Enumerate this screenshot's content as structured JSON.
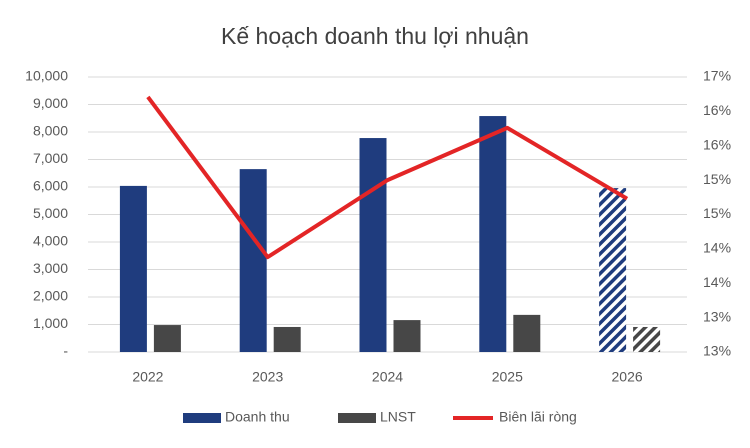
{
  "chart_data": {
    "type": "bar_line",
    "title": "Kế hoạch doanh thu lợi nhuận",
    "categories": [
      "2022",
      "2023",
      "2024",
      "2025",
      "2026"
    ],
    "series": [
      {
        "name": "Doanh thu",
        "color": "#1f3c7e",
        "type": "bar",
        "values": [
          6040,
          6650,
          7780,
          8580,
          5960
        ]
      },
      {
        "name": "LNST",
        "color": "#474747",
        "type": "bar",
        "values": [
          980,
          910,
          1160,
          1350,
          910
        ]
      },
      {
        "name": "Biên lãi ròng",
        "color": "#e32526",
        "type": "line",
        "axis": "y2",
        "values": [
          16.21,
          13.88,
          15.0,
          15.76,
          14.73
        ]
      }
    ],
    "hatched": [
      false,
      false,
      false,
      false,
      true
    ],
    "ylim": [
      0,
      10000
    ],
    "yticks": [
      {
        "value": 0,
        "label": "-"
      },
      {
        "value": 1000,
        "label": "1,000"
      },
      {
        "value": 2000,
        "label": "2,000"
      },
      {
        "value": 3000,
        "label": "3,000"
      },
      {
        "value": 4000,
        "label": "4,000"
      },
      {
        "value": 5000,
        "label": "5,000"
      },
      {
        "value": 6000,
        "label": "6,000"
      },
      {
        "value": 7000,
        "label": "7,000"
      },
      {
        "value": 8000,
        "label": "8,000"
      },
      {
        "value": 9000,
        "label": "9,000"
      },
      {
        "value": 10000,
        "label": "10,000"
      }
    ],
    "y2lim": [
      12.5,
      16.5
    ],
    "y2ticks": [
      {
        "value": 12.5,
        "label": "13%"
      },
      {
        "value": 13,
        "label": "13%"
      },
      {
        "value": 13.5,
        "label": "14%"
      },
      {
        "value": 14,
        "label": "14%"
      },
      {
        "value": 14.5,
        "label": "15%"
      },
      {
        "value": 15,
        "label": "15%"
      },
      {
        "value": 15.5,
        "label": "16%"
      },
      {
        "value": 16,
        "label": "16%"
      },
      {
        "value": 16.5,
        "label": "17%"
      }
    ],
    "grid": true,
    "legend": "bottom"
  }
}
